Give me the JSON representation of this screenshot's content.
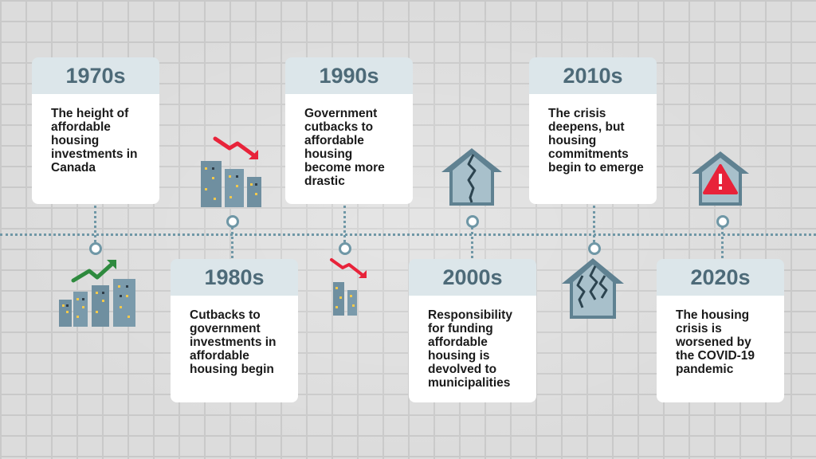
{
  "timeline": [
    {
      "year": "1970s",
      "text": "The height of affordable housing investments in Canada",
      "icon": "buildings-trend-up-icon"
    },
    {
      "year": "1980s",
      "text": "Cutbacks to government investments in affordable housing begin",
      "icon": "buildings-trend-down-icon"
    },
    {
      "year": "1990s",
      "text": "Government cutbacks to affordable housing become more drastic",
      "icon": "small-buildings-trend-down-icon"
    },
    {
      "year": "2000s",
      "text": "Responsibility for funding affordable housing is devolved to municipalities",
      "icon": "cracked-house-icon"
    },
    {
      "year": "2010s",
      "text": "The crisis deepens, but housing commitments begin to emerge",
      "icon": "cracked-house-icon"
    },
    {
      "year": "2020s",
      "text": "The housing crisis is worsened by the COVID-19 pandemic",
      "icon": "house-alert-icon"
    }
  ],
  "colors": {
    "accent": "#6f97a6",
    "year_header_bg": "#dce6ea",
    "year_text": "#4d6a78",
    "trend_up": "#2e8a3e",
    "trend_down": "#e8233a",
    "alert": "#e8233a"
  }
}
